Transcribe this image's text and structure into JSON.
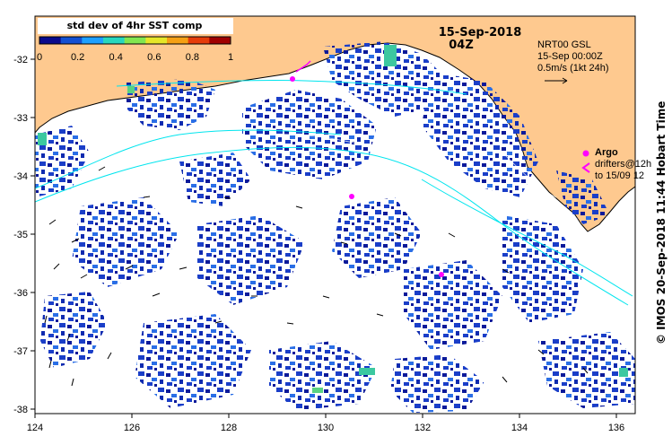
{
  "header": {
    "date": "15-Sep-2018",
    "time": "04Z"
  },
  "colorbar": {
    "title": "std dev of 4hr SST comp",
    "ticks": [
      "0",
      "0.2",
      "0.4",
      "0.6",
      "0.8",
      "1"
    ],
    "colors": [
      "#0a0a8c",
      "#1450d2",
      "#1ea0ff",
      "#28d7be",
      "#82e650",
      "#e6e628",
      "#f5a014",
      "#e63c0a",
      "#a00000"
    ]
  },
  "current_info": {
    "product": "NRT00 GSL",
    "valid": "15-Sep 00:00Z",
    "scale_text": "0.5m/s (1kt 24h)"
  },
  "legend": {
    "argo_label": "Argo",
    "drifters_line1": "drifters@12h",
    "drifters_line2": "to 15/09 12"
  },
  "axes": {
    "x_ticks": [
      "124",
      "126",
      "128",
      "130",
      "132",
      "134",
      "136"
    ],
    "y_ticks": [
      "-32",
      "-33",
      "-34",
      "-35",
      "-36",
      "-37",
      "-38"
    ]
  },
  "credit": "© IMOS 20-Sep-2018 11:44 Hobart Time",
  "colors": {
    "land": "#fec98f",
    "current_line": "#00e5ee",
    "marker": "#ff00ff",
    "sea": "#ffffff"
  }
}
